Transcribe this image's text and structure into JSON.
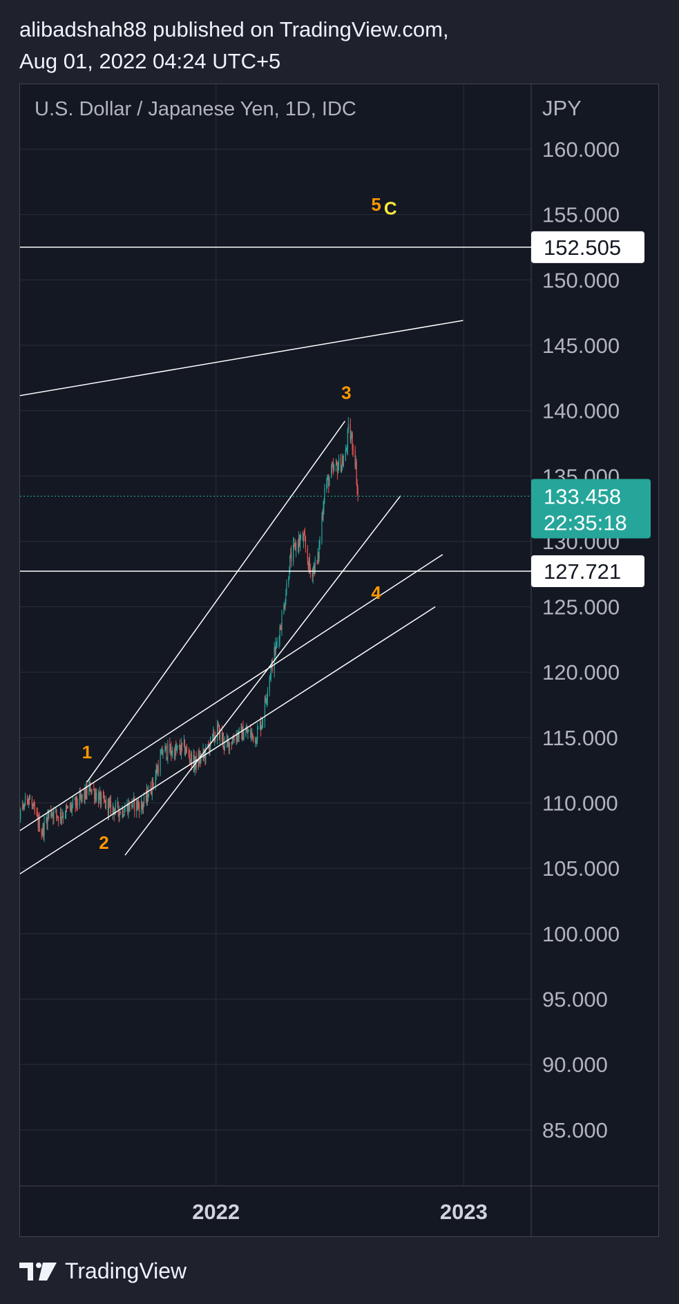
{
  "header": {
    "line1": "alibadshah88 published on TradingView.com,",
    "line2": "Aug 01, 2022 04:24 UTC+5"
  },
  "footer": {
    "brand": "TradingView",
    "logo_icon": "tradingview-logo-icon"
  },
  "chart_data": {
    "type": "candlestick",
    "title": "U.S. Dollar / Japanese Yen, 1D, IDC",
    "currency": "JPY",
    "ylim": [
      82,
      166
    ],
    "x_ticks": [
      "2022",
      "2023"
    ],
    "y_ticks": [
      "160.000",
      "155.000",
      "150.000",
      "145.000",
      "140.000",
      "135.000",
      "130.000",
      "125.000",
      "120.000",
      "115.000",
      "110.000",
      "105.000",
      "100.000",
      "95.000",
      "90.000",
      "85.000"
    ],
    "series": [
      {
        "ohlc_path": [
          [
            "2021-03-01",
            106.0
          ],
          [
            "2021-03-10",
            108.6
          ],
          [
            "2021-03-20",
            109.2
          ],
          [
            "2021-03-30",
            110.6
          ],
          [
            "2021-04-10",
            109.0
          ],
          [
            "2021-04-20",
            107.8
          ],
          [
            "2021-05-01",
            109.4
          ],
          [
            "2021-05-15",
            109.0
          ],
          [
            "2021-06-01",
            109.6
          ],
          [
            "2021-06-15",
            110.2
          ],
          [
            "2021-06-30",
            111.2
          ],
          [
            "2021-07-15",
            110.2
          ],
          [
            "2021-07-30",
            109.6
          ],
          [
            "2021-08-15",
            109.4
          ],
          [
            "2021-08-30",
            109.9
          ],
          [
            "2021-09-15",
            109.8
          ],
          [
            "2021-09-30",
            111.5
          ],
          [
            "2021-10-15",
            114.0
          ],
          [
            "2021-10-30",
            113.9
          ],
          [
            "2021-11-15",
            114.2
          ],
          [
            "2021-11-30",
            113.0
          ],
          [
            "2021-12-15",
            113.7
          ],
          [
            "2022-01-04",
            115.6
          ],
          [
            "2022-01-15",
            114.3
          ],
          [
            "2022-01-31",
            115.2
          ],
          [
            "2022-02-15",
            115.4
          ],
          [
            "2022-02-28",
            115.0
          ],
          [
            "2022-03-10",
            116.3
          ],
          [
            "2022-03-20",
            119.5
          ],
          [
            "2022-03-30",
            121.8
          ],
          [
            "2022-04-10",
            124.6
          ],
          [
            "2022-04-20",
            128.5
          ],
          [
            "2022-04-30",
            129.9
          ],
          [
            "2022-05-10",
            130.2
          ],
          [
            "2022-05-20",
            127.6
          ],
          [
            "2022-05-31",
            128.5
          ],
          [
            "2022-06-10",
            134.0
          ],
          [
            "2022-06-20",
            135.2
          ],
          [
            "2022-06-30",
            135.8
          ],
          [
            "2022-07-10",
            136.2
          ],
          [
            "2022-07-15",
            138.4
          ],
          [
            "2022-07-20",
            137.8
          ],
          [
            "2022-07-25",
            136.4
          ],
          [
            "2022-07-29",
            133.458
          ]
        ]
      }
    ],
    "horizontal_levels": [
      {
        "price": 152.505,
        "label": "152.505"
      },
      {
        "price": 127.721,
        "label": "127.721"
      }
    ],
    "last_price": {
      "price": 133.458,
      "label": "133.458",
      "countdown": "22:35:18"
    },
    "trendlines": [
      {
        "from": [
          "2021-03-01",
          141.0
        ],
        "to": [
          "2022-12-31",
          146.9
        ]
      },
      {
        "from": [
          "2021-03-01",
          104.0
        ],
        "to": [
          "2022-11-20",
          125.0
        ]
      },
      {
        "from": [
          "2021-03-01",
          107.3
        ],
        "to": [
          "2022-12-01",
          129.0
        ]
      },
      {
        "from": [
          "2021-06-25",
          111.6
        ],
        "to": [
          "2022-07-10",
          139.2
        ]
      },
      {
        "from": [
          "2021-08-20",
          106.0
        ],
        "to": [
          "2022-09-30",
          133.5
        ]
      }
    ],
    "wave_labels": [
      {
        "text": "1",
        "date": "2021-06-25",
        "price": 113.4,
        "color": "#ff9800"
      },
      {
        "text": "2",
        "date": "2021-07-20",
        "price": 106.5,
        "color": "#ff9800"
      },
      {
        "text": "3",
        "date": "2022-07-12",
        "price": 140.9,
        "color": "#ff9800"
      },
      {
        "text": "4",
        "date": "2022-08-25",
        "price": 125.6,
        "color": "#ff9800"
      },
      {
        "text": "5",
        "date": "2022-08-25",
        "price": 155.3,
        "color": "#ff9800"
      },
      {
        "text": "C",
        "date": "2022-09-15",
        "price": 155.0,
        "color": "#ffeb3b"
      }
    ],
    "colors": {
      "up": "#26a69a",
      "down": "#ef5350",
      "background": "#141823",
      "grid": "#2a2e39",
      "axis_text": "#b2b5be",
      "lines": "#ffffff",
      "last_price_bg": "#26a69a",
      "last_price_line": "#26a69a"
    },
    "grid": true
  }
}
